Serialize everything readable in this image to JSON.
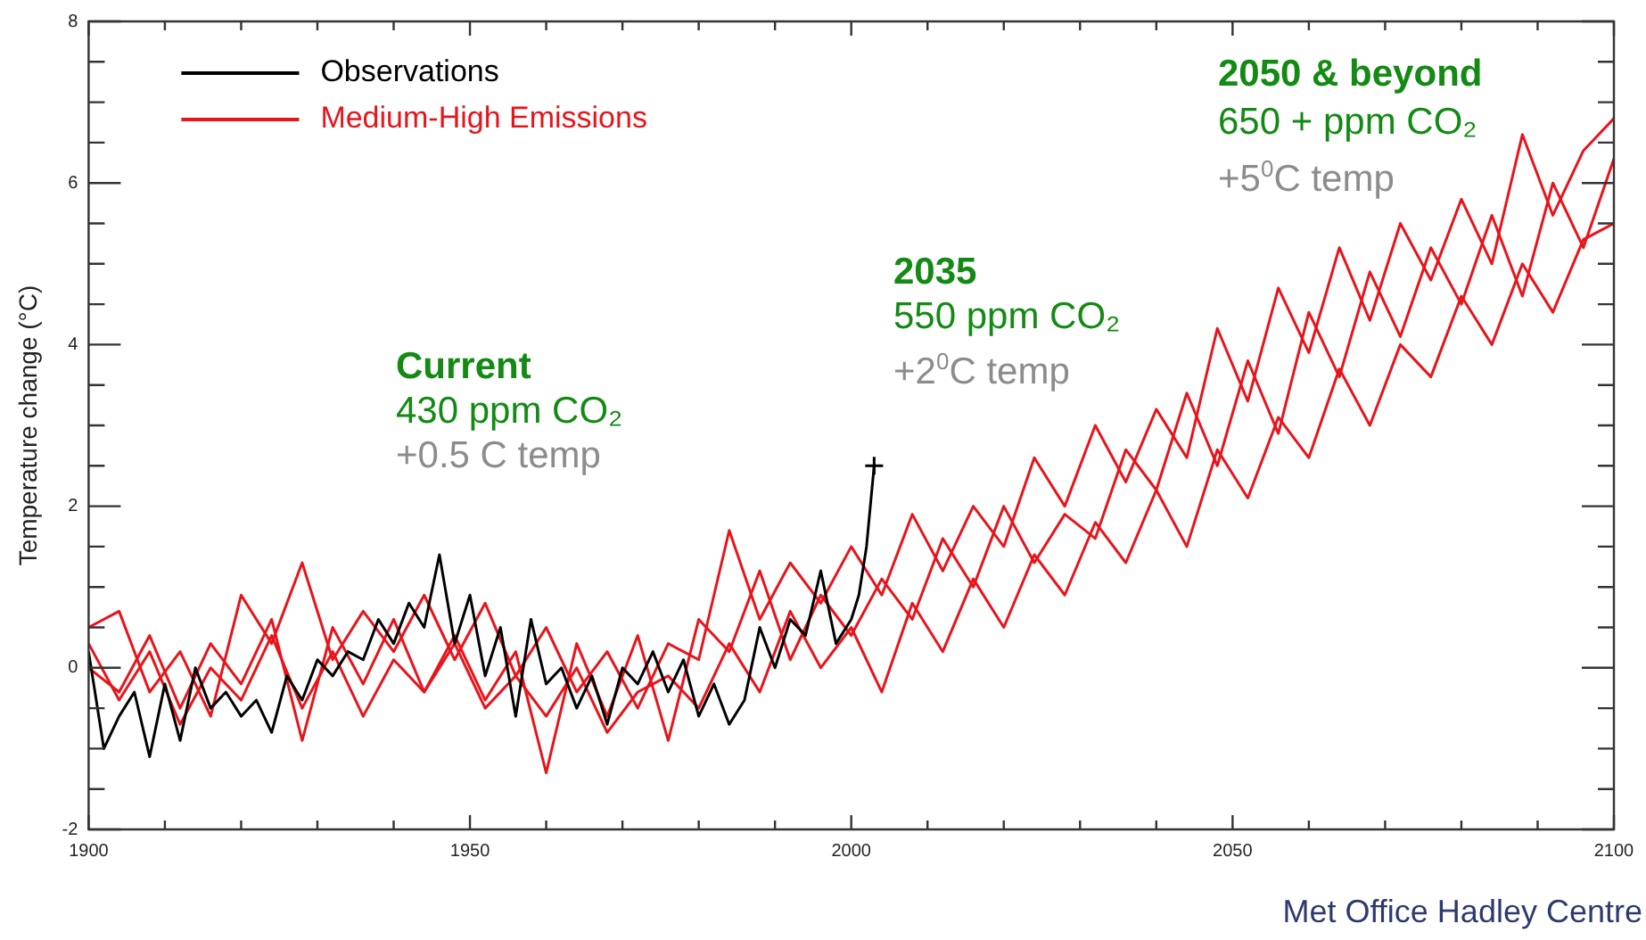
{
  "chart_data": {
    "type": "line",
    "ylabel": "Temperature change (°C)",
    "xlim": [
      1900,
      2100
    ],
    "xticks": [
      1900,
      {
        "value": 1910,
        "label": null
      },
      {
        "value": 1920,
        "label": null
      },
      {
        "value": 1930,
        "label": null
      },
      {
        "value": 1940,
        "label": null
      },
      1950,
      {
        "value": 1960,
        "label": null
      },
      {
        "value": 1970,
        "label": null
      },
      {
        "value": 1980,
        "label": null
      },
      {
        "value": 1990,
        "label": null
      },
      2000,
      {
        "value": 2010,
        "label": null
      },
      {
        "value": 2020,
        "label": null
      },
      {
        "value": 2030,
        "label": null
      },
      {
        "value": 2040,
        "label": null
      },
      2050,
      {
        "value": 2060,
        "label": null
      },
      {
        "value": 2070,
        "label": null
      },
      {
        "value": 2080,
        "label": null
      },
      {
        "value": 2090,
        "label": null
      },
      2100
    ],
    "ylim": [
      -2,
      8
    ],
    "yticks": [
      -2,
      {
        "value": -1.5,
        "label": null
      },
      {
        "value": -1,
        "label": null
      },
      {
        "value": -0.5,
        "label": null
      },
      0,
      {
        "value": 0.5,
        "label": null
      },
      {
        "value": 1,
        "label": null
      },
      {
        "value": 1.5,
        "label": null
      },
      2,
      {
        "value": 2.5,
        "label": null
      },
      {
        "value": 3,
        "label": null
      },
      {
        "value": 3.5,
        "label": null
      },
      4,
      {
        "value": 4.5,
        "label": null
      },
      {
        "value": 5,
        "label": null
      },
      {
        "value": 5.5,
        "label": null
      },
      6,
      {
        "value": 6.5,
        "label": null
      },
      {
        "value": 7,
        "label": null
      },
      {
        "value": 7.5,
        "label": null
      },
      8
    ],
    "grid": false,
    "legend": "top left",
    "marker": "none",
    "line_style": "solid",
    "series": [
      {
        "name": "Medium-High Emissions",
        "color": "#e8141b",
        "x": [
          1900,
          1904,
          1908,
          1912,
          1916,
          1920,
          1924,
          1928,
          1932,
          1936,
          1940,
          1944,
          1948,
          1952,
          1956,
          1960,
          1964,
          1968,
          1972,
          1976,
          1980,
          1984,
          1988,
          1992,
          1996,
          2000,
          2004,
          2008,
          2012,
          2016,
          2020,
          2024,
          2028,
          2032,
          2036,
          2040,
          2044,
          2048,
          2052,
          2056,
          2060,
          2064,
          2068,
          2072,
          2076,
          2080,
          2084,
          2088,
          2092,
          2096,
          2100
        ],
        "values": [
          0.5,
          0.7,
          -0.3,
          0.2,
          -0.6,
          0.9,
          0.3,
          1.3,
          0.1,
          0.7,
          0.2,
          0.9,
          0.1,
          0.8,
          -0.1,
          0.5,
          -0.3,
          0.2,
          -0.5,
          0.3,
          0.1,
          1.7,
          0.6,
          1.3,
          0.8,
          1.5,
          0.9,
          1.9,
          1.2,
          2.0,
          1.5,
          2.6,
          2.0,
          3.0,
          2.3,
          3.2,
          2.6,
          4.2,
          3.3,
          4.7,
          3.9,
          5.2,
          4.3,
          5.5,
          4.8,
          5.8,
          5.0,
          6.6,
          5.6,
          6.4,
          6.8
        ]
      },
      {
        "color": "#e8141b",
        "x": [
          1900,
          1904,
          1908,
          1912,
          1916,
          1920,
          1924,
          1928,
          1932,
          1936,
          1940,
          1944,
          1948,
          1952,
          1956,
          1960,
          1964,
          1968,
          1972,
          1976,
          1980,
          1984,
          1988,
          1992,
          1996,
          2000,
          2004,
          2008,
          2012,
          2016,
          2020,
          2024,
          2028,
          2032,
          2036,
          2040,
          2044,
          2048,
          2052,
          2056,
          2060,
          2064,
          2068,
          2072,
          2076,
          2080,
          2084,
          2088,
          2092,
          2096,
          2100
        ],
        "values": [
          0.0,
          -0.3,
          0.4,
          -0.5,
          0.3,
          -0.2,
          0.6,
          -0.9,
          0.5,
          -0.2,
          0.6,
          -0.3,
          0.4,
          -0.4,
          0.2,
          -1.3,
          0.3,
          -0.6,
          0.4,
          -0.9,
          0.6,
          0.2,
          1.2,
          0.1,
          0.9,
          0.4,
          1.1,
          0.6,
          1.6,
          1.0,
          2.0,
          1.3,
          1.9,
          1.6,
          2.7,
          2.2,
          3.4,
          2.5,
          3.8,
          2.9,
          4.4,
          3.6,
          4.9,
          4.1,
          5.2,
          4.5,
          5.6,
          4.6,
          6.0,
          5.2,
          6.3
        ]
      },
      {
        "color": "#e8141b",
        "x": [
          1900,
          1904,
          1908,
          1912,
          1916,
          1920,
          1924,
          1928,
          1932,
          1936,
          1940,
          1944,
          1948,
          1952,
          1956,
          1960,
          1964,
          1968,
          1972,
          1976,
          1980,
          1984,
          1988,
          1992,
          1996,
          2000,
          2004,
          2008,
          2012,
          2016,
          2020,
          2024,
          2028,
          2032,
          2036,
          2040,
          2044,
          2048,
          2052,
          2056,
          2060,
          2064,
          2068,
          2072,
          2076,
          2080,
          2084,
          2088,
          2092,
          2096,
          2100
        ],
        "values": [
          0.3,
          -0.4,
          0.2,
          -0.7,
          0.0,
          -0.4,
          0.4,
          -0.5,
          0.2,
          -0.6,
          0.1,
          -0.3,
          0.3,
          -0.5,
          -0.1,
          -0.6,
          0.0,
          -0.8,
          -0.3,
          -0.1,
          -0.5,
          0.3,
          -0.3,
          0.7,
          0.0,
          0.5,
          -0.3,
          0.8,
          0.2,
          1.1,
          0.5,
          1.4,
          0.9,
          1.8,
          1.3,
          2.2,
          1.5,
          2.7,
          2.1,
          3.1,
          2.6,
          3.7,
          3.0,
          4.0,
          3.6,
          4.6,
          4.0,
          5.0,
          4.4,
          5.3,
          5.5
        ]
      },
      {
        "name": "Observations",
        "color": "#000000",
        "x": [
          1900,
          1902,
          1904,
          1906,
          1908,
          1910,
          1912,
          1914,
          1916,
          1918,
          1920,
          1922,
          1924,
          1926,
          1928,
          1930,
          1932,
          1934,
          1936,
          1938,
          1940,
          1942,
          1944,
          1946,
          1948,
          1950,
          1952,
          1954,
          1956,
          1958,
          1960,
          1962,
          1964,
          1966,
          1968,
          1970,
          1972,
          1974,
          1976,
          1978,
          1980,
          1982,
          1984,
          1986,
          1988,
          1990,
          1992,
          1994,
          1996,
          1998,
          2000,
          2001,
          2002,
          2003
        ],
        "values": [
          0.2,
          -1.0,
          -0.6,
          -0.3,
          -1.1,
          -0.2,
          -0.9,
          0.0,
          -0.5,
          -0.3,
          -0.6,
          -0.4,
          -0.8,
          -0.1,
          -0.4,
          0.1,
          -0.1,
          0.2,
          0.1,
          0.6,
          0.3,
          0.8,
          0.5,
          1.4,
          0.3,
          0.9,
          -0.1,
          0.5,
          -0.6,
          0.6,
          -0.2,
          0.0,
          -0.5,
          -0.1,
          -0.7,
          0.0,
          -0.2,
          0.2,
          -0.3,
          0.1,
          -0.6,
          -0.2,
          -0.7,
          -0.4,
          0.5,
          0.0,
          0.6,
          0.4,
          1.2,
          0.3,
          0.6,
          0.9,
          1.5,
          2.5
        ]
      },
      {
        "type": "scatter",
        "marker": "cross",
        "color": "#000000",
        "x": [
          2003
        ],
        "values": [
          2.5
        ]
      }
    ],
    "annotations": [
      "Current",
      "430 ppm CO₂",
      "+0.5 C temp",
      "2035",
      "550 ppm CO₂",
      "+2$^{0}$C temp",
      "2050 & beyond",
      "650 + ppm CO₂",
      "+5$^{0}$C temp",
      "Met Office Hadley Centre"
    ]
  }
}
